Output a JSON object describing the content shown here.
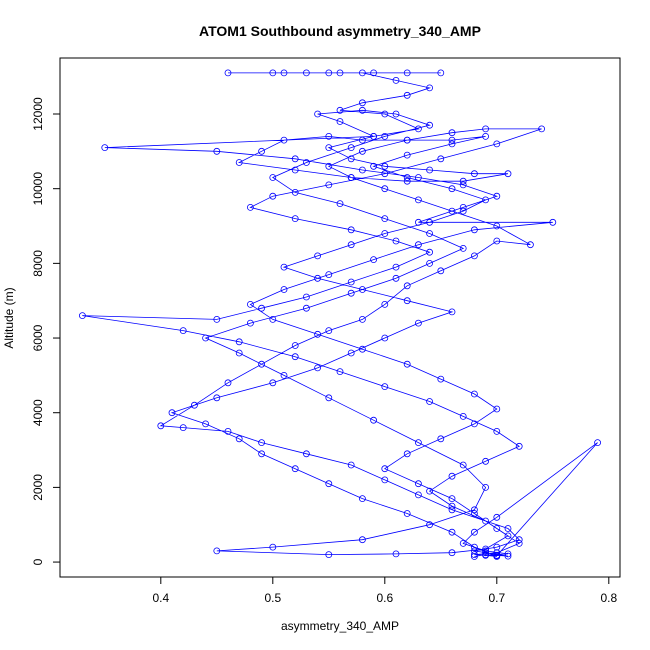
{
  "chart_data": {
    "type": "line",
    "markers": "open-circle",
    "title": "ATOM1 Southbound asymmetry_340_AMP",
    "xlabel": "asymmetry_340_AMP",
    "ylabel": "Altitude (m)",
    "xlim": [
      0.31,
      0.81
    ],
    "ylim": [
      -400,
      13500
    ],
    "x_ticks": [
      0.4,
      0.5,
      0.6,
      0.7,
      0.8
    ],
    "x_tick_labels": [
      "0.4",
      "0.5",
      "0.6",
      "0.7",
      "0.8"
    ],
    "y_ticks": [
      0,
      2000,
      4000,
      6000,
      8000,
      10000,
      12000
    ],
    "y_tick_labels": [
      "0",
      "2000",
      "4000",
      "6000",
      "8000",
      "10000",
      "12000"
    ],
    "grid": false,
    "legend": "none",
    "series": [
      {
        "color": "#0000ff",
        "points": [
          [
            0.68,
            150
          ],
          [
            0.69,
            200
          ],
          [
            0.7,
            180
          ],
          [
            0.71,
            160
          ],
          [
            0.69,
            250
          ],
          [
            0.68,
            300
          ],
          [
            0.7,
            400
          ],
          [
            0.72,
            600
          ],
          [
            0.71,
            900
          ],
          [
            0.66,
            1400
          ],
          [
            0.63,
            1800
          ],
          [
            0.6,
            2200
          ],
          [
            0.57,
            2600
          ],
          [
            0.53,
            2900
          ],
          [
            0.49,
            3200
          ],
          [
            0.46,
            3500
          ],
          [
            0.42,
            3600
          ],
          [
            0.4,
            3650
          ],
          [
            0.43,
            4200
          ],
          [
            0.46,
            4800
          ],
          [
            0.49,
            5300
          ],
          [
            0.52,
            5800
          ],
          [
            0.55,
            6200
          ],
          [
            0.58,
            6500
          ],
          [
            0.6,
            6900
          ],
          [
            0.62,
            7400
          ],
          [
            0.65,
            7800
          ],
          [
            0.68,
            8200
          ],
          [
            0.7,
            8600
          ],
          [
            0.73,
            8500
          ],
          [
            0.7,
            9000
          ],
          [
            0.66,
            9400
          ],
          [
            0.63,
            9700
          ],
          [
            0.6,
            10000
          ],
          [
            0.57,
            10300
          ],
          [
            0.55,
            10600
          ],
          [
            0.58,
            11000
          ],
          [
            0.62,
            11300
          ],
          [
            0.66,
            11500
          ],
          [
            0.69,
            11600
          ],
          [
            0.74,
            11600
          ],
          [
            0.7,
            11200
          ],
          [
            0.65,
            10800
          ],
          [
            0.6,
            10400
          ],
          [
            0.55,
            10100
          ],
          [
            0.5,
            9800
          ],
          [
            0.48,
            9500
          ],
          [
            0.52,
            9200
          ],
          [
            0.57,
            8900
          ],
          [
            0.61,
            8600
          ],
          [
            0.64,
            8300
          ],
          [
            0.61,
            7900
          ],
          [
            0.57,
            7500
          ],
          [
            0.53,
            7100
          ],
          [
            0.49,
            6800
          ],
          [
            0.45,
            6500
          ],
          [
            0.33,
            6600
          ],
          [
            0.42,
            6200
          ],
          [
            0.47,
            5900
          ],
          [
            0.52,
            5500
          ],
          [
            0.56,
            5100
          ],
          [
            0.6,
            4700
          ],
          [
            0.64,
            4300
          ],
          [
            0.67,
            3900
          ],
          [
            0.7,
            3500
          ],
          [
            0.72,
            3100
          ],
          [
            0.69,
            2700
          ],
          [
            0.66,
            2300
          ],
          [
            0.64,
            1900
          ],
          [
            0.66,
            1500
          ],
          [
            0.69,
            1100
          ],
          [
            0.71,
            700
          ],
          [
            0.69,
            350
          ],
          [
            0.66,
            250
          ],
          [
            0.61,
            220
          ],
          [
            0.55,
            200
          ],
          [
            0.45,
            300
          ],
          [
            0.5,
            400
          ],
          [
            0.58,
            600
          ],
          [
            0.64,
            1000
          ],
          [
            0.68,
            1400
          ],
          [
            0.69,
            2000
          ],
          [
            0.67,
            2600
          ],
          [
            0.63,
            3200
          ],
          [
            0.59,
            3800
          ],
          [
            0.55,
            4400
          ],
          [
            0.51,
            5000
          ],
          [
            0.47,
            5600
          ],
          [
            0.44,
            6000
          ],
          [
            0.48,
            6400
          ],
          [
            0.53,
            6800
          ],
          [
            0.57,
            7200
          ],
          [
            0.61,
            7600
          ],
          [
            0.64,
            8000
          ],
          [
            0.67,
            8400
          ],
          [
            0.64,
            8800
          ],
          [
            0.6,
            9200
          ],
          [
            0.56,
            9600
          ],
          [
            0.52,
            9900
          ],
          [
            0.5,
            10300
          ],
          [
            0.53,
            10700
          ],
          [
            0.57,
            11100
          ],
          [
            0.6,
            11400
          ],
          [
            0.64,
            11700
          ],
          [
            0.61,
            12000
          ],
          [
            0.58,
            12100
          ],
          [
            0.54,
            12000
          ],
          [
            0.56,
            11800
          ],
          [
            0.59,
            11400
          ],
          [
            0.35,
            11100
          ],
          [
            0.45,
            11000
          ],
          [
            0.52,
            10800
          ],
          [
            0.58,
            10500
          ],
          [
            0.63,
            10300
          ],
          [
            0.67,
            10100
          ],
          [
            0.7,
            9800
          ],
          [
            0.67,
            9500
          ],
          [
            0.63,
            9100
          ],
          [
            0.75,
            9100
          ],
          [
            0.68,
            8900
          ],
          [
            0.63,
            8500
          ],
          [
            0.59,
            8100
          ],
          [
            0.55,
            7700
          ],
          [
            0.51,
            7300
          ],
          [
            0.48,
            6900
          ],
          [
            0.5,
            6500
          ],
          [
            0.54,
            6100
          ],
          [
            0.58,
            5700
          ],
          [
            0.62,
            5300
          ],
          [
            0.65,
            4900
          ],
          [
            0.68,
            4500
          ],
          [
            0.7,
            4100
          ],
          [
            0.68,
            3700
          ],
          [
            0.65,
            3300
          ],
          [
            0.62,
            2900
          ],
          [
            0.6,
            2500
          ],
          [
            0.63,
            2100
          ],
          [
            0.66,
            1700
          ],
          [
            0.68,
            1300
          ],
          [
            0.7,
            900
          ],
          [
            0.72,
            500
          ],
          [
            0.7,
            250
          ],
          [
            0.68,
            200
          ],
          [
            0.7,
            170
          ],
          [
            0.79,
            3200
          ],
          [
            0.7,
            1200
          ],
          [
            0.68,
            800
          ],
          [
            0.67,
            500
          ],
          [
            0.69,
            300
          ],
          [
            0.71,
            220
          ],
          [
            0.69,
            180
          ],
          [
            0.7,
            150
          ],
          [
            0.68,
            400
          ],
          [
            0.66,
            800
          ],
          [
            0.62,
            1300
          ],
          [
            0.58,
            1700
          ],
          [
            0.55,
            2100
          ],
          [
            0.52,
            2500
          ],
          [
            0.49,
            2900
          ],
          [
            0.47,
            3300
          ],
          [
            0.44,
            3700
          ],
          [
            0.41,
            4000
          ],
          [
            0.45,
            4400
          ],
          [
            0.5,
            4800
          ],
          [
            0.54,
            5200
          ],
          [
            0.57,
            5600
          ],
          [
            0.6,
            6000
          ],
          [
            0.63,
            6400
          ],
          [
            0.66,
            6700
          ],
          [
            0.62,
            7000
          ],
          [
            0.58,
            7300
          ],
          [
            0.54,
            7600
          ],
          [
            0.51,
            7900
          ],
          [
            0.54,
            8200
          ],
          [
            0.57,
            8500
          ],
          [
            0.6,
            8800
          ],
          [
            0.64,
            9100
          ],
          [
            0.67,
            9400
          ],
          [
            0.69,
            9700
          ],
          [
            0.66,
            10000
          ],
          [
            0.62,
            10300
          ],
          [
            0.59,
            10600
          ],
          [
            0.62,
            10900
          ],
          [
            0.66,
            11200
          ],
          [
            0.69,
            11400
          ],
          [
            0.66,
            11300
          ],
          [
            0.62,
            11300
          ],
          [
            0.58,
            11300
          ],
          [
            0.55,
            11400
          ],
          [
            0.51,
            11300
          ],
          [
            0.49,
            11000
          ],
          [
            0.47,
            10700
          ],
          [
            0.52,
            10500
          ],
          [
            0.57,
            10300
          ],
          [
            0.62,
            10200
          ],
          [
            0.67,
            10200
          ],
          [
            0.71,
            10400
          ],
          [
            0.68,
            10400
          ],
          [
            0.64,
            10500
          ],
          [
            0.6,
            10600
          ],
          [
            0.57,
            10800
          ],
          [
            0.55,
            11100
          ],
          [
            0.59,
            11400
          ],
          [
            0.63,
            11600
          ],
          [
            0.6,
            12000
          ],
          [
            0.56,
            12100
          ],
          [
            0.58,
            12300
          ],
          [
            0.62,
            12500
          ],
          [
            0.64,
            12700
          ],
          [
            0.61,
            12900
          ],
          [
            0.58,
            13100
          ],
          [
            0.55,
            13100
          ],
          [
            0.53,
            13100
          ],
          [
            0.51,
            13100
          ],
          [
            0.46,
            13100
          ],
          [
            0.5,
            13100
          ],
          [
            0.56,
            13100
          ],
          [
            0.59,
            13100
          ],
          [
            0.62,
            13100
          ],
          [
            0.65,
            13100
          ]
        ]
      }
    ]
  }
}
